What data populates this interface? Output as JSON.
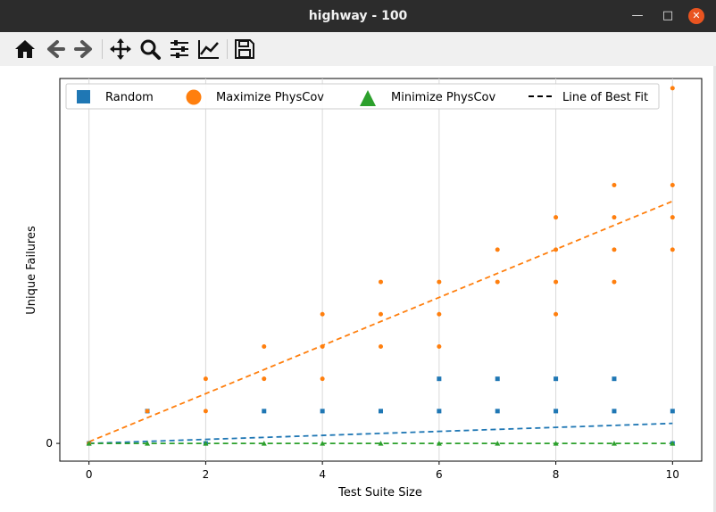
{
  "window": {
    "title": "highway - 100",
    "minimize": "—",
    "maximize": "□",
    "close": "✕"
  },
  "toolbar": {
    "items": [
      "home-icon",
      "back-icon",
      "forward-icon",
      "pan-icon",
      "zoom-icon",
      "configure-subplots-icon",
      "edit-axis-icon",
      "save-icon"
    ]
  },
  "chart_data": {
    "type": "scatter",
    "xlabel": "Test Suite Size",
    "ylabel": "Unique Failures",
    "xlim": [
      -0.5,
      10.5
    ],
    "ylim": [
      -0.55,
      11.3
    ],
    "x_ticks": [
      "0",
      "2",
      "4",
      "6",
      "8",
      "10"
    ],
    "y_ticks": [
      "0"
    ],
    "grid": "x-axis only",
    "legend_position": "top",
    "legend": [
      "Random",
      "Maximize PhysCov",
      "Minimize PhysCov",
      "Line of Best Fit"
    ],
    "series": [
      {
        "name": "Random",
        "color": "#1f77b4",
        "marker": "square",
        "points": [
          [
            0,
            0
          ],
          [
            1,
            1
          ],
          [
            2,
            0
          ],
          [
            3,
            1
          ],
          [
            4,
            1
          ],
          [
            5,
            1
          ],
          [
            6,
            2
          ],
          [
            6,
            1
          ],
          [
            7,
            2
          ],
          [
            7,
            1
          ],
          [
            8,
            2
          ],
          [
            8,
            1
          ],
          [
            9,
            2
          ],
          [
            9,
            1
          ],
          [
            10,
            1
          ],
          [
            10,
            0
          ]
        ]
      },
      {
        "name": "Maximize PhysCov",
        "color": "#ff7f0e",
        "marker": "circle",
        "points": [
          [
            0,
            0
          ],
          [
            1,
            1
          ],
          [
            2,
            2
          ],
          [
            2,
            1
          ],
          [
            3,
            3
          ],
          [
            3,
            2
          ],
          [
            4,
            4
          ],
          [
            4,
            3
          ],
          [
            4,
            2
          ],
          [
            5,
            5
          ],
          [
            5,
            4
          ],
          [
            5,
            3
          ],
          [
            6,
            5
          ],
          [
            6,
            4
          ],
          [
            6,
            3
          ],
          [
            7,
            6
          ],
          [
            7,
            5
          ],
          [
            8,
            7
          ],
          [
            8,
            6
          ],
          [
            8,
            5
          ],
          [
            8,
            4
          ],
          [
            9,
            8
          ],
          [
            9,
            7
          ],
          [
            9,
            6
          ],
          [
            9,
            5
          ],
          [
            10,
            11
          ],
          [
            10,
            8
          ],
          [
            10,
            7
          ],
          [
            10,
            6
          ]
        ]
      },
      {
        "name": "Minimize PhysCov",
        "color": "#2ca02c",
        "marker": "triangle",
        "points": [
          [
            0,
            0
          ],
          [
            1,
            0
          ],
          [
            2,
            0
          ],
          [
            3,
            0
          ],
          [
            4,
            0
          ],
          [
            5,
            0
          ],
          [
            6,
            0
          ],
          [
            7,
            0
          ],
          [
            8,
            0
          ],
          [
            9,
            0
          ],
          [
            10,
            0
          ]
        ]
      }
    ],
    "best_fit_lines": [
      {
        "series": "Random",
        "color": "#1f77b4",
        "x": [
          0,
          10
        ],
        "y": [
          0,
          0.62
        ]
      },
      {
        "series": "Maximize PhysCov",
        "color": "#ff7f0e",
        "x": [
          0,
          10
        ],
        "y": [
          0.05,
          7.5
        ]
      },
      {
        "series": "Minimize PhysCov",
        "color": "#2ca02c",
        "x": [
          0,
          10
        ],
        "y": [
          0,
          0
        ]
      }
    ]
  }
}
